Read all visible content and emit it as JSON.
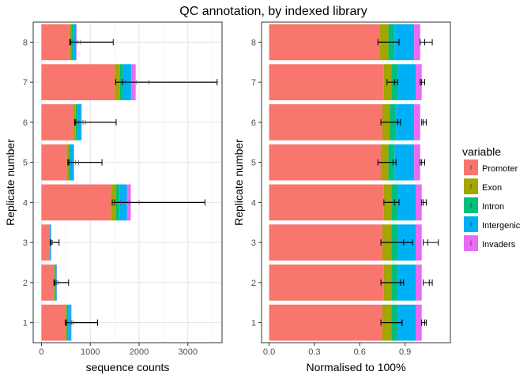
{
  "title": "QC annotation, by indexed library",
  "legend": {
    "title": "variable",
    "entries": [
      {
        "name": "Promoter",
        "color": "#F8766D"
      },
      {
        "name": "Exon",
        "color": "#A3A500"
      },
      {
        "name": "Intron",
        "color": "#00BF7D"
      },
      {
        "name": "Intergenic",
        "color": "#00B0F6"
      },
      {
        "name": "Invaders",
        "color": "#E76BF3"
      }
    ],
    "position": "right"
  },
  "chart_data": [
    {
      "type": "bar",
      "orientation": "horizontal",
      "stacked": true,
      "xlabel": "sequence counts",
      "ylabel": "Replicate number",
      "xlim": [
        -170,
        3700
      ],
      "xticks": [
        0,
        1000,
        2000,
        3000
      ],
      "grid": true,
      "categories": [
        "1",
        "2",
        "3",
        "4",
        "5",
        "6",
        "7",
        "8"
      ],
      "series": [
        {
          "name": "Promoter",
          "values": [
            480,
            250,
            160,
            1420,
            520,
            650,
            1500,
            570
          ]
        },
        {
          "name": "Exon",
          "values": [
            40,
            20,
            10,
            110,
            40,
            50,
            110,
            45
          ]
        },
        {
          "name": "Intron",
          "values": [
            25,
            10,
            5,
            70,
            30,
            35,
            60,
            30
          ]
        },
        {
          "name": "Intergenic",
          "values": [
            60,
            30,
            20,
            150,
            70,
            80,
            170,
            65
          ]
        },
        {
          "name": "Invaders",
          "values": [
            10,
            5,
            5,
            80,
            10,
            10,
            90,
            10
          ]
        }
      ],
      "error_bars": [
        {
          "center": 510,
          "low": 490,
          "high": 1150,
          "minor": [
            570,
            620,
            650
          ]
        },
        {
          "center": 270,
          "low": 255,
          "high": 555,
          "minor": [
            290,
            310,
            335
          ]
        },
        {
          "center": 190,
          "low": 180,
          "high": 360,
          "minor": [
            200,
            215,
            225
          ]
        },
        {
          "center": 1500,
          "low": 1450,
          "high": 3350,
          "minor": [
            1620,
            1800,
            2000
          ]
        },
        {
          "center": 560,
          "low": 540,
          "high": 1240,
          "minor": [
            620,
            700,
            760
          ]
        },
        {
          "center": 700,
          "low": 680,
          "high": 1530,
          "minor": [
            760,
            850,
            900
          ]
        },
        {
          "center": 1660,
          "low": 1520,
          "high": 3600,
          "minor": [
            1720,
            1950,
            2200
          ]
        },
        {
          "center": 600,
          "low": 580,
          "high": 1470,
          "minor": [
            650,
            740,
            800
          ]
        }
      ]
    },
    {
      "type": "bar",
      "orientation": "horizontal",
      "stacked": true,
      "xlabel": "Normalised to 100%",
      "ylabel": "Replicate number",
      "xlim": [
        -0.05,
        1.2
      ],
      "xticks": [
        "0.0",
        "0.3",
        "0.6",
        "0.9"
      ],
      "grid": false,
      "categories": [
        "1",
        "2",
        "3",
        "4",
        "5",
        "6",
        "7",
        "8"
      ],
      "series": [
        {
          "name": "Promoter",
          "values": [
            0.75,
            0.76,
            0.75,
            0.76,
            0.74,
            0.75,
            0.76,
            0.73
          ]
        },
        {
          "name": "Exon",
          "values": [
            0.06,
            0.05,
            0.06,
            0.05,
            0.05,
            0.05,
            0.05,
            0.06
          ]
        },
        {
          "name": "Intron",
          "values": [
            0.04,
            0.04,
            0.04,
            0.04,
            0.04,
            0.04,
            0.04,
            0.04
          ]
        },
        {
          "name": "Intergenic",
          "values": [
            0.12,
            0.12,
            0.12,
            0.12,
            0.13,
            0.12,
            0.12,
            0.13
          ]
        },
        {
          "name": "Invaders",
          "values": [
            0.04,
            0.04,
            0.04,
            0.04,
            0.04,
            0.04,
            0.04,
            0.04
          ]
        }
      ],
      "error_bars": [
        {
          "center": 0.88,
          "low": 0.74,
          "high": 0.88,
          "right_center": 1.03,
          "right_low": 1.01,
          "right_high": 1.04
        },
        {
          "center": 0.87,
          "low": 0.74,
          "high": 0.89,
          "right_center": 1.06,
          "right_low": 1.02,
          "right_high": 1.08
        },
        {
          "center": 0.89,
          "low": 0.74,
          "high": 0.95,
          "right_center": 1.05,
          "right_low": 1.02,
          "right_high": 1.12
        },
        {
          "center": 0.83,
          "low": 0.76,
          "high": 0.86,
          "right_center": 1.02,
          "right_low": 1.01,
          "right_high": 1.04
        },
        {
          "center": 0.82,
          "low": 0.72,
          "high": 0.84,
          "right_center": 1.01,
          "right_low": 1.0,
          "right_high": 1.03
        },
        {
          "center": 0.85,
          "low": 0.74,
          "high": 0.87,
          "right_center": 1.02,
          "right_low": 1.01,
          "right_high": 1.04
        },
        {
          "center": 0.83,
          "low": 0.78,
          "high": 0.85,
          "right_center": 1.01,
          "right_low": 1.0,
          "right_high": 1.03
        },
        {
          "center": 0.86,
          "low": 0.72,
          "high": 0.86,
          "right_center": 1.03,
          "right_low": 1.0,
          "right_high": 1.08
        }
      ]
    }
  ]
}
